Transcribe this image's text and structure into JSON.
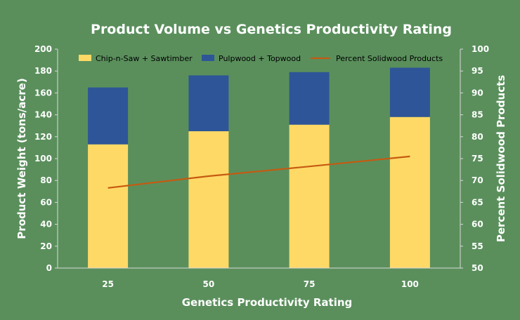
{
  "chart_data": {
    "type": "bar",
    "title": "Product Volume vs Genetics Productivity Rating",
    "xlabel": "Genetics Productivity Rating",
    "ylabel": "Product Weight (tons/acre)",
    "y2label": "Percent Solidwood Products",
    "categories": [
      "25",
      "50",
      "75",
      "100"
    ],
    "ylim": [
      0,
      200
    ],
    "yticks": [
      0,
      20,
      40,
      60,
      80,
      100,
      120,
      140,
      160,
      180,
      200
    ],
    "y2lim": [
      50,
      100
    ],
    "y2ticks": [
      50,
      55,
      60,
      65,
      70,
      75,
      80,
      85,
      90,
      95,
      100
    ],
    "stacked": true,
    "grid": false,
    "legend_position": "top",
    "series": [
      {
        "name": "Chip-n-Saw + Sawtimber",
        "type": "bar",
        "axis": "left",
        "color": "#ffd966",
        "values": [
          113,
          125,
          131,
          138
        ]
      },
      {
        "name": "Pulpwood + Topwood",
        "type": "bar",
        "axis": "left",
        "color": "#2e5597",
        "values": [
          52,
          51,
          48,
          45
        ]
      },
      {
        "name": "Percent Solidwood Products",
        "type": "line",
        "axis": "right",
        "color": "#c55a11",
        "values": [
          68.3,
          71.0,
          73.2,
          75.5
        ]
      }
    ]
  }
}
